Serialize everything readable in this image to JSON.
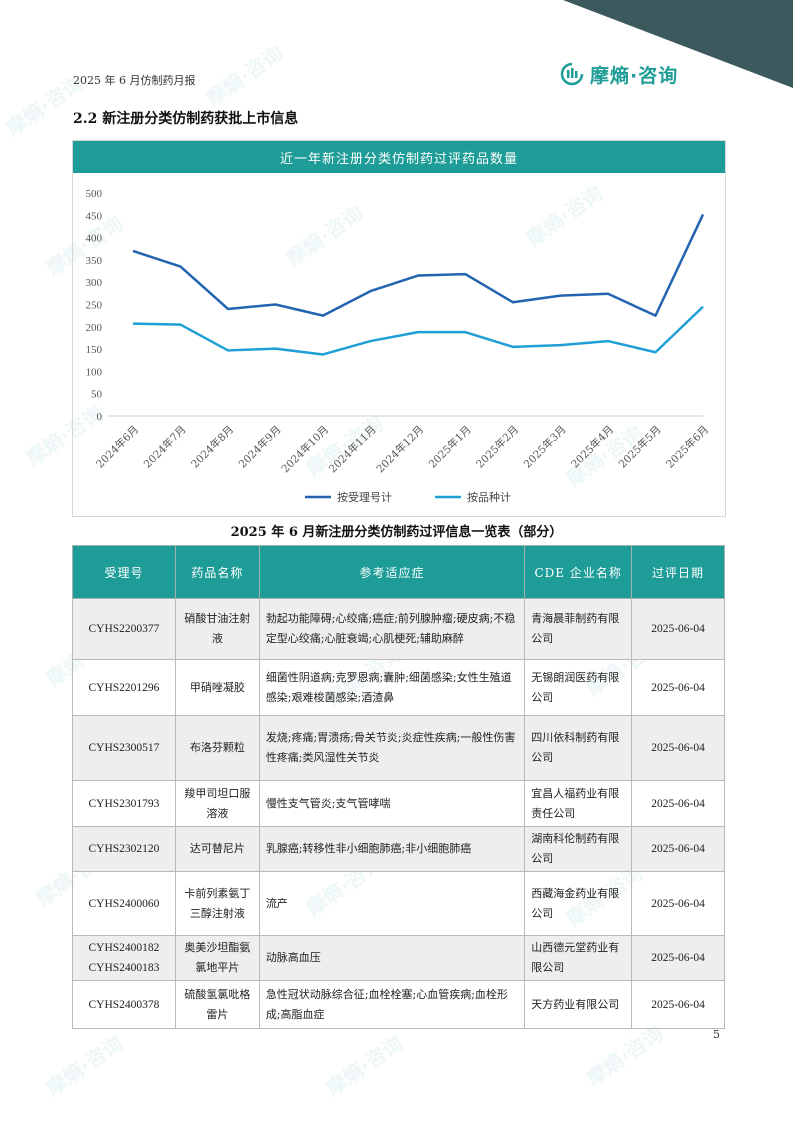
{
  "header": {
    "report_title": "2025 年 6 月仿制药月报",
    "logo_text": "摩熵·咨询"
  },
  "section": {
    "title": "2.2 新注册分类仿制药获批上市信息"
  },
  "chart_data": {
    "type": "line",
    "title": "近一年新注册分类仿制药过评药品数量",
    "categories": [
      "2024年6月",
      "2024年7月",
      "2024年8月",
      "2024年9月",
      "2024年10月",
      "2024年11月",
      "2024年12月",
      "2025年1月",
      "2025年2月",
      "2025年3月",
      "2025年4月",
      "2025年5月",
      "2025年6月"
    ],
    "series": [
      {
        "name": "按受理号计",
        "color": "#2264b0",
        "values": [
          370,
          335,
          240,
          250,
          225,
          280,
          315,
          318,
          255,
          270,
          274,
          225,
          452
        ]
      },
      {
        "name": "按品种计",
        "color": "#1f9fd6",
        "values": [
          207,
          205,
          147,
          151,
          138,
          168,
          188,
          188,
          155,
          159,
          168,
          143,
          245
        ]
      }
    ],
    "yticks": [
      "0",
      "50",
      "100",
      "150",
      "200",
      "250",
      "300",
      "350",
      "400",
      "450",
      "500"
    ],
    "ylim": [
      0,
      500
    ],
    "legend_position": "bottom",
    "grid": false
  },
  "table": {
    "title": "2025 年 6 月新注册分类仿制药过评信息一览表（部分）",
    "headers": [
      "受理号",
      "药品名称",
      "参考适应症",
      "CDE 企业名称",
      "过评日期"
    ],
    "rows": [
      {
        "id": "CYHS2200377",
        "name": "硝酸甘油注射液",
        "indication": "勃起功能障碍;心绞痛;癌症;前列腺肿瘤;硬皮病;不稳定型心绞痛;心脏衰竭;心肌梗死;辅助麻醉",
        "company": "青海晨菲制药有限公司",
        "date": "2025-06-04"
      },
      {
        "id": "CYHS2201296",
        "name": "甲硝唑凝胶",
        "indication": "细菌性阴道病;克罗恩病;囊肿;细菌感染;女性生殖道感染;艰难梭菌感染;酒渣鼻",
        "company": "无锡朗润医药有限公司",
        "date": "2025-06-04"
      },
      {
        "id": "CYHS2300517",
        "name": "布洛芬颗粒",
        "indication": "发烧;疼痛;胃溃疡;骨关节炎;炎症性疾病;一般性伤害性疼痛;类风湿性关节炎",
        "company": "四川依科制药有限公司",
        "date": "2025-06-04"
      },
      {
        "id": "CYHS2301793",
        "name": "羧甲司坦口服溶液",
        "indication": "慢性支气管炎;支气管哮喘",
        "company": "宜昌人福药业有限责任公司",
        "date": "2025-06-04"
      },
      {
        "id": "CYHS2302120",
        "name": "达可替尼片",
        "indication": "乳腺癌;转移性非小细胞肺癌;非小细胞肺癌",
        "company": "湖南科伦制药有限公司",
        "date": "2025-06-04"
      },
      {
        "id": "CYHS2400060",
        "name": "卡前列素氨丁三醇注射液",
        "indication": "流产",
        "company": "西藏海金药业有限公司",
        "date": "2025-06-04"
      },
      {
        "id": "CYHS2400182",
        "id2": "CYHS2400183",
        "name": "奥美沙坦酯氨氯地平片",
        "indication": "动脉高血压",
        "company": "山西德元堂药业有限公司",
        "date": "2025-06-04"
      },
      {
        "id": "CYHS2400378",
        "name": "硫酸氢氯吡格雷片",
        "indication": "急性冠状动脉综合征;血栓栓塞;心血管疾病;血栓形成;高脂血症",
        "company": "天方药业有限公司",
        "date": "2025-06-04"
      }
    ]
  },
  "footer": {
    "page_number": "5"
  }
}
